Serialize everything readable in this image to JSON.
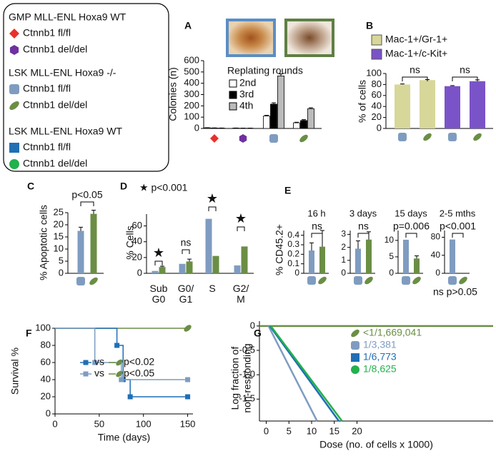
{
  "key": {
    "groups": [
      {
        "title": "GMP MLL-ENL Hoxa9  WT",
        "items": [
          "Ctnnb1 fl/fl",
          "Ctnnb1 del/del"
        ]
      },
      {
        "title": "LSK MLL-ENL Hoxa9 -/-",
        "items": [
          "Ctnnb1 fl/fl",
          "Ctnnb1 del/del"
        ]
      },
      {
        "title": "LSK MLL-ENL Hoxa9 WT",
        "items": [
          "Ctnnb1 fl/fl",
          "Ctnnb1 del/del"
        ]
      }
    ]
  },
  "chart_data": [
    {
      "panel": "A",
      "type": "bar",
      "ylabel": "Colonies (n)",
      "ylim": [
        0,
        600
      ],
      "yticks": [
        0,
        100,
        200,
        300,
        400,
        500,
        600
      ],
      "categories": [
        null,
        null,
        null,
        null
      ],
      "legend_title": "Replating rounds",
      "series": [
        {
          "name": "2nd",
          "color": "#ffffff",
          "values": [
            6,
            3,
            110,
            50
          ],
          "errors": [
            1,
            1,
            6,
            5
          ]
        },
        {
          "name": "3rd",
          "color": "#000000",
          "values": [
            4,
            2,
            215,
            70
          ],
          "errors": [
            1,
            1,
            12,
            8
          ]
        },
        {
          "name": "4th",
          "color": "#bbbbbb",
          "values": [
            3,
            2,
            465,
            175
          ],
          "errors": [
            1,
            1,
            18,
            8
          ]
        }
      ]
    },
    {
      "panel": "B",
      "type": "bar",
      "ylabel": "% of cells",
      "ylim": [
        0,
        100
      ],
      "yticks": [
        0,
        20,
        40,
        60,
        80,
        100
      ],
      "categories": [
        null,
        null
      ],
      "series": [
        {
          "name": "Mac-1+/Gr-1+",
          "color": "#d7d79a",
          "values": [
            80,
            88
          ],
          "errors": [
            1,
            1
          ]
        },
        {
          "name": "Mac-1+/c-Kit+",
          "color": "#7b53c8",
          "values": [
            77,
            86
          ],
          "errors": [
            1,
            2.5
          ]
        }
      ],
      "annotations": [
        "ns",
        "ns"
      ]
    },
    {
      "panel": "C",
      "type": "bar",
      "ylabel": "% Apoptotic cells",
      "ylim": [
        0,
        25
      ],
      "yticks": [
        0,
        5,
        10,
        15,
        20,
        25
      ],
      "categories": [
        null,
        null
      ],
      "values": [
        17.5,
        24.5
      ],
      "errors": [
        1.5,
        1.5
      ],
      "colors": [
        "#7f9cc0",
        "#6b8e45"
      ],
      "annotations": [
        "p<0.05"
      ]
    },
    {
      "panel": "D",
      "type": "bar",
      "ylabel": "% Cells",
      "note": "★ p<0.001",
      "ylim": [
        0,
        75
      ],
      "yticks": [
        0,
        20,
        40,
        60
      ],
      "categories": [
        "Sub G0",
        "G0/ G1",
        "S",
        "G2/ M"
      ],
      "series": [
        {
          "color": "#7f9cc0",
          "values": [
            3,
            12,
            69,
            10
          ]
        },
        {
          "color": "#6b8e45",
          "values": [
            8,
            15,
            22,
            34
          ],
          "errors": [
            1,
            3,
            0,
            0
          ]
        }
      ],
      "annotations": [
        "★",
        "ns",
        "★",
        "★"
      ]
    },
    {
      "panel": "E",
      "type": "bar",
      "title": "16 h",
      "ylabel": "% CD45.2+",
      "ylim": [
        0,
        0.45
      ],
      "yticks": [
        0,
        0.1,
        0.2,
        0.3,
        0.4
      ],
      "categories": [
        null,
        null
      ],
      "values": [
        0.24,
        0.28
      ],
      "errors": [
        0.08,
        0.17
      ],
      "colors": [
        "#7f9cc0",
        "#6b8e45"
      ],
      "annotations": [
        "ns"
      ]
    },
    {
      "type": "bar",
      "title": "3 days",
      "ylim": [
        0,
        3.3
      ],
      "yticks": [
        0,
        1,
        2,
        3
      ],
      "categories": [
        null,
        null
      ],
      "values": [
        1.9,
        2.6
      ],
      "errors": [
        0.6,
        0.6
      ],
      "colors": [
        "#7f9cc0",
        "#6b8e45"
      ],
      "annotations": [
        "ns"
      ]
    },
    {
      "type": "bar",
      "title": "15 days",
      "ylim": [
        0,
        13
      ],
      "yticks": [
        0,
        5,
        10
      ],
      "categories": [
        null,
        null
      ],
      "values": [
        10.2,
        4.5
      ],
      "errors": [
        0,
        0.8
      ],
      "colors": [
        "#7f9cc0",
        "#6b8e45"
      ],
      "annotations": [
        "p=0.006"
      ]
    },
    {
      "type": "bar",
      "title": "2-5 mths",
      "note": "ns p>0.05",
      "ylim": [
        0,
        95
      ],
      "yticks": [
        0,
        40,
        80
      ],
      "categories": [
        null,
        null
      ],
      "values": [
        75,
        0
      ],
      "colors": [
        "#7f9cc0",
        "#6b8e45"
      ],
      "annotations": [
        "p<0.001"
      ]
    },
    {
      "panel": "F",
      "type": "line",
      "xlabel": "Time (days)",
      "ylabel": "Survival %",
      "xlim": [
        0,
        156
      ],
      "xticks": [
        0,
        50,
        100,
        150
      ],
      "ylim": [
        0,
        100
      ],
      "yticks": [
        0,
        20,
        40,
        60,
        80,
        100
      ],
      "series": [
        {
          "color": "#6b8e45",
          "x": [
            0,
            150
          ],
          "values": [
            100,
            100
          ]
        },
        {
          "color": "#1f6fb5",
          "x": [
            0,
            70,
            70,
            77,
            77,
            85,
            85,
            150
          ],
          "values": [
            100,
            100,
            80,
            80,
            40,
            40,
            20,
            20
          ]
        },
        {
          "color": "#7f9cc0",
          "x": [
            0,
            45,
            45,
            75,
            75,
            150
          ],
          "values": [
            100,
            100,
            60,
            60,
            40,
            40
          ]
        }
      ],
      "legend": [
        {
          "label": "vs",
          "note": "p<0.02"
        },
        {
          "label": "vs",
          "note": "p<0.05"
        }
      ]
    },
    {
      "panel": "G",
      "type": "line",
      "xlabel": "Dose (no. of cells x 1000)",
      "ylabel_lines": [
        "Log fraction of",
        "non-responding"
      ],
      "xlim": [
        -1.5,
        50
      ],
      "xticks": [
        0,
        5,
        10,
        15,
        20
      ],
      "ylim": [
        -1.95,
        0.1
      ],
      "yticks": [
        0,
        -0.5,
        {
          "value": -1,
          "label": "-1.0"
        },
        -1.5
      ],
      "series": [
        {
          "name": "<1/1,669,041",
          "color": "#6b8e45",
          "x": [
            -1.5,
            50
          ],
          "values": [
            0,
            0
          ]
        },
        {
          "name": "1/3,381",
          "color": "#7f9cc0",
          "x": [
            0.5,
            11.2
          ],
          "values": [
            0,
            -1.95
          ]
        },
        {
          "name": "1/6,773",
          "color": "#1f6fb5",
          "x": [
            0.8,
            16
          ],
          "values": [
            0,
            -1.95
          ]
        },
        {
          "name": "1/8,625",
          "color": "#22b14c",
          "x": [
            1,
            16.7
          ],
          "values": [
            0,
            -1.95
          ]
        }
      ]
    }
  ]
}
